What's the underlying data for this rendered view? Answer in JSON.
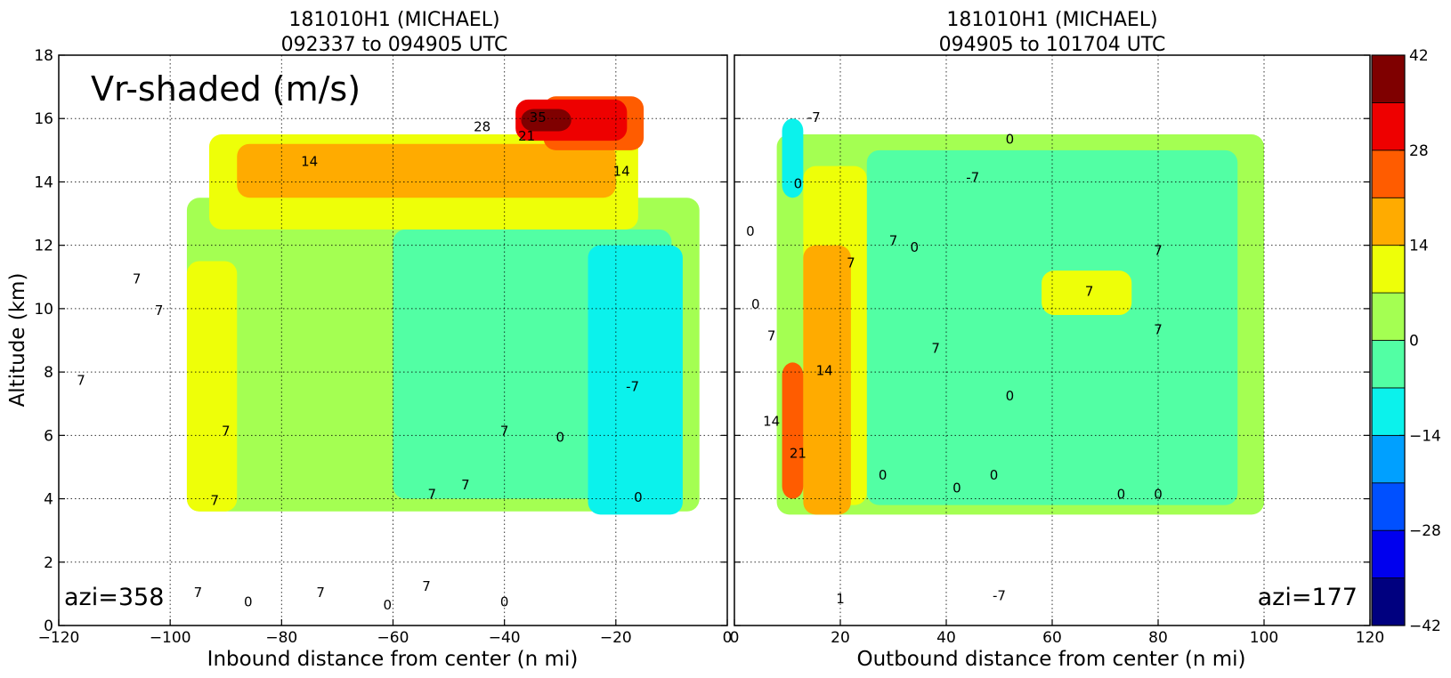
{
  "chart_data": [
    {
      "type": "heatmap",
      "title_line1": "181010H1 (MICHAEL)",
      "title_line2": "092337 to 094905 UTC",
      "xlabel": "Inbound distance from center (n mi)",
      "ylabel": "Altitude (km)",
      "xlim": [
        -120,
        0
      ],
      "ylim": [
        0,
        18
      ],
      "xticks": [
        "−120",
        "−100",
        "−80",
        "−60",
        "−40",
        "−20",
        "0"
      ],
      "xtick_values": [
        -120,
        -100,
        -80,
        -60,
        -40,
        -20,
        0
      ],
      "yticks": [
        "0",
        "2",
        "4",
        "6",
        "8",
        "10",
        "12",
        "14",
        "16",
        "18"
      ],
      "ytick_values": [
        0,
        2,
        4,
        6,
        8,
        10,
        12,
        14,
        16,
        18
      ],
      "grid": true,
      "annotation_main": "Vr-shaded (m/s)",
      "annotation_azimuth": "azi=358",
      "regions": [
        {
          "band": "0-7",
          "x_range": [
            -97,
            -5
          ],
          "z_range": [
            3.6,
            13.5
          ]
        },
        {
          "band": "-7-0",
          "x_range": [
            -60,
            -10
          ],
          "z_range": [
            4.0,
            12.5
          ]
        },
        {
          "band": "-14--7",
          "x_range": [
            -25,
            -8
          ],
          "z_range": [
            3.5,
            12.0
          ]
        },
        {
          "band": "7-14",
          "x_range": [
            -97,
            -88
          ],
          "z_range": [
            3.6,
            11.5
          ]
        },
        {
          "band": "7-14",
          "x_range": [
            -93,
            -16
          ],
          "z_range": [
            12.5,
            15.5
          ]
        },
        {
          "band": "14-21",
          "x_range": [
            -88,
            -20
          ],
          "z_range": [
            13.5,
            15.2
          ]
        },
        {
          "band": "21-28",
          "x_range": [
            -33,
            -15
          ],
          "z_range": [
            15.0,
            16.7
          ]
        },
        {
          "band": "28-35",
          "x_range": [
            -38,
            -18
          ],
          "z_range": [
            15.3,
            16.6
          ]
        },
        {
          "band": "35-42",
          "x_range": [
            -37,
            -28
          ],
          "z_range": [
            15.6,
            16.3
          ]
        }
      ],
      "contour_labels": [
        {
          "text": "7",
          "x": -106,
          "z": 10.8
        },
        {
          "text": "7",
          "x": -102,
          "z": 9.8
        },
        {
          "text": "7",
          "x": -116,
          "z": 7.6
        },
        {
          "text": "7",
          "x": -92,
          "z": 3.8
        },
        {
          "text": "7",
          "x": -90,
          "z": 6.0
        },
        {
          "text": "14",
          "x": -75,
          "z": 14.5
        },
        {
          "text": "14",
          "x": -19,
          "z": 14.2
        },
        {
          "text": "21",
          "x": -36,
          "z": 15.3
        },
        {
          "text": "28",
          "x": -44,
          "z": 15.6
        },
        {
          "text": "35",
          "x": -34,
          "z": 15.9
        },
        {
          "text": "7",
          "x": -40,
          "z": 6.0
        },
        {
          "text": "0",
          "x": -30,
          "z": 5.8
        },
        {
          "text": "-7",
          "x": -17,
          "z": 7.4
        },
        {
          "text": "7",
          "x": -53,
          "z": 4.0
        },
        {
          "text": "7",
          "x": -47,
          "z": 4.3
        },
        {
          "text": "0",
          "x": -16,
          "z": 3.9
        },
        {
          "text": "7",
          "x": -95,
          "z": 0.9
        },
        {
          "text": "0",
          "x": -86,
          "z": 0.6
        },
        {
          "text": "7",
          "x": -73,
          "z": 0.9
        },
        {
          "text": "7",
          "x": -54,
          "z": 1.1
        },
        {
          "text": "0",
          "x": -61,
          "z": 0.5
        },
        {
          "text": "0",
          "x": -40,
          "z": 0.6
        }
      ]
    },
    {
      "type": "heatmap",
      "title_line1": "181010H1 (MICHAEL)",
      "title_line2": "094905 to 101704 UTC",
      "xlabel": "Outbound distance from center (n mi)",
      "xlim": [
        0,
        120
      ],
      "ylim": [
        0,
        18
      ],
      "xticks": [
        "0",
        "20",
        "40",
        "60",
        "80",
        "100",
        "120"
      ],
      "xtick_values": [
        0,
        20,
        40,
        60,
        80,
        100,
        120
      ],
      "grid": true,
      "annotation_azimuth": "azi=177",
      "regions": [
        {
          "band": "0-7",
          "x_range": [
            8,
            100
          ],
          "z_range": [
            3.5,
            15.5
          ]
        },
        {
          "band": "-7-0",
          "x_range": [
            25,
            95
          ],
          "z_range": [
            3.8,
            15.0
          ]
        },
        {
          "band": "-14--7",
          "x_range": [
            9,
            13
          ],
          "z_range": [
            13.5,
            16.0
          ]
        },
        {
          "band": "7-14",
          "x_range": [
            13,
            25
          ],
          "z_range": [
            3.8,
            14.5
          ]
        },
        {
          "band": "7-14",
          "x_range": [
            58,
            75
          ],
          "z_range": [
            9.8,
            11.2
          ]
        },
        {
          "band": "14-21",
          "x_range": [
            13,
            22
          ],
          "z_range": [
            3.5,
            12.0
          ]
        },
        {
          "band": "21-28",
          "x_range": [
            9,
            13
          ],
          "z_range": [
            4.0,
            8.3
          ]
        }
      ],
      "contour_labels": [
        {
          "text": "-7",
          "x": 15,
          "z": 15.9
        },
        {
          "text": "0",
          "x": 12,
          "z": 13.8
        },
        {
          "text": "0",
          "x": 3,
          "z": 12.3
        },
        {
          "text": "0",
          "x": 4,
          "z": 10.0
        },
        {
          "text": "7",
          "x": 7,
          "z": 9.0
        },
        {
          "text": "7",
          "x": 22,
          "z": 11.3
        },
        {
          "text": "14",
          "x": 17,
          "z": 7.9
        },
        {
          "text": "14",
          "x": 7,
          "z": 6.3
        },
        {
          "text": "21",
          "x": 12,
          "z": 5.3
        },
        {
          "text": "7",
          "x": 30,
          "z": 12.0
        },
        {
          "text": "0",
          "x": 34,
          "z": 11.8
        },
        {
          "text": "-7",
          "x": 45,
          "z": 14.0
        },
        {
          "text": "0",
          "x": 52,
          "z": 15.2
        },
        {
          "text": "7",
          "x": 38,
          "z": 8.6
        },
        {
          "text": "7",
          "x": 67,
          "z": 10.4
        },
        {
          "text": "7",
          "x": 80,
          "z": 11.7
        },
        {
          "text": "7",
          "x": 80,
          "z": 9.2
        },
        {
          "text": "0",
          "x": 52,
          "z": 7.1
        },
        {
          "text": "0",
          "x": 28,
          "z": 4.6
        },
        {
          "text": "0",
          "x": 42,
          "z": 4.2
        },
        {
          "text": "0",
          "x": 49,
          "z": 4.6
        },
        {
          "text": "0",
          "x": 73,
          "z": 4.0
        },
        {
          "text": "0",
          "x": 80,
          "z": 4.0
        },
        {
          "text": "-7",
          "x": 50,
          "z": 0.8
        },
        {
          "text": "1",
          "x": 20,
          "z": 0.7
        }
      ]
    }
  ],
  "colorbar": {
    "tick_labels": [
      "42",
      "28",
      "14",
      "0",
      "−14",
      "−28",
      "−42"
    ],
    "tick_values": [
      42,
      28,
      14,
      0,
      -14,
      -28,
      -42
    ],
    "levels": [
      -42,
      -35,
      -28,
      -21,
      -14,
      -7,
      0,
      7,
      14,
      21,
      28,
      35,
      42
    ],
    "colors": [
      "#00007f",
      "#0000ee",
      "#0050ff",
      "#00a0ff",
      "#0bf2ec",
      "#52ffa4",
      "#a4ff52",
      "#eeff08",
      "#ffab00",
      "#ff5c00",
      "#ee0000",
      "#7f0000"
    ]
  }
}
